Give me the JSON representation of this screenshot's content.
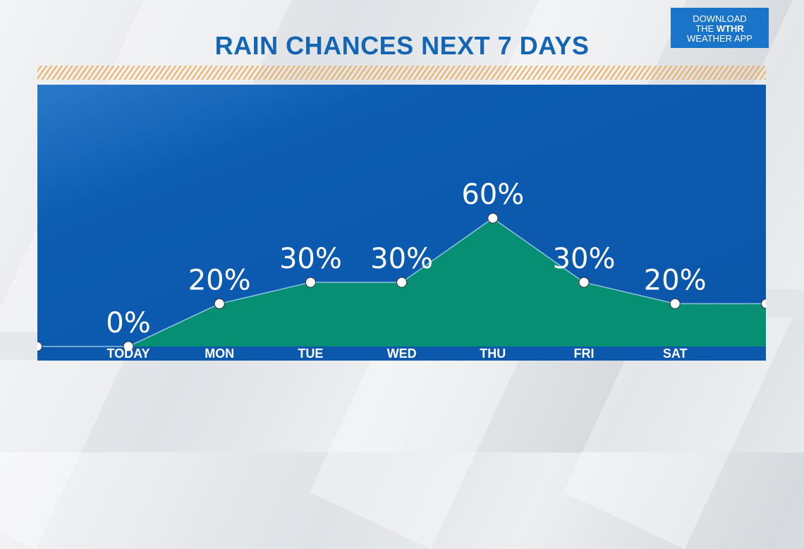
{
  "title": "RAIN CHANCES NEXT 7 DAYS",
  "promo": {
    "line1": "DOWNLOAD",
    "line2_prefix": "THE ",
    "line2_brand": "WTHR",
    "line3": "WEATHER APP"
  },
  "colors": {
    "panel": "#0d5db3",
    "area": "#068f73",
    "title": "#1565b5",
    "hatch": "#f0a94a"
  },
  "chart_data": {
    "type": "area",
    "categories": [
      "TODAY",
      "MON",
      "TUE",
      "WED",
      "THU",
      "FRI",
      "SAT"
    ],
    "values": [
      0,
      20,
      30,
      30,
      60,
      30,
      20
    ],
    "data_labels": [
      "0%",
      "20%",
      "30%",
      "30%",
      "60%",
      "30%",
      "20%"
    ],
    "left_edge_value": 0,
    "right_edge_value": 20,
    "ylim": [
      0,
      100
    ],
    "title": "RAIN CHANCES NEXT 7 DAYS"
  }
}
